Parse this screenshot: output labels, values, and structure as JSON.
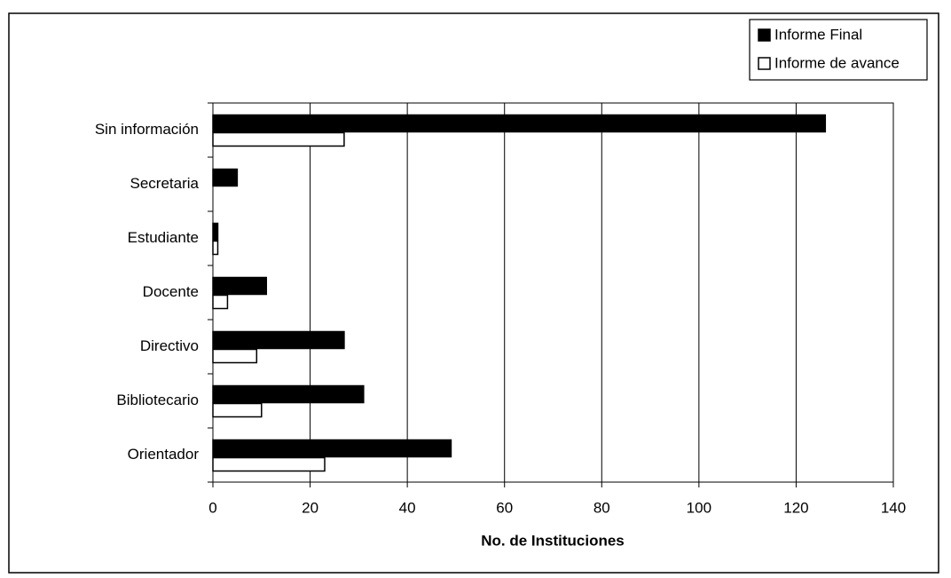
{
  "chart_data": {
    "type": "bar",
    "orientation": "horizontal",
    "x_label": "No. de Instituciones",
    "categories": [
      "Sin información",
      "Secretaria",
      "Estudiante",
      "Docente",
      "Directivo",
      "Bibliotecario",
      "Orientador"
    ],
    "series": [
      {
        "name": "Informe Final",
        "color": "#000000",
        "values": [
          126,
          5,
          1,
          11,
          27,
          31,
          49
        ]
      },
      {
        "name": "Informe de avance",
        "color": "#ffffff",
        "values": [
          27,
          0,
          1,
          3,
          9,
          10,
          23
        ]
      }
    ],
    "xlim": [
      0,
      140
    ],
    "xticks": [
      0,
      20,
      40,
      60,
      80,
      100,
      120,
      140
    ],
    "grid": true,
    "legend": "top-right"
  }
}
